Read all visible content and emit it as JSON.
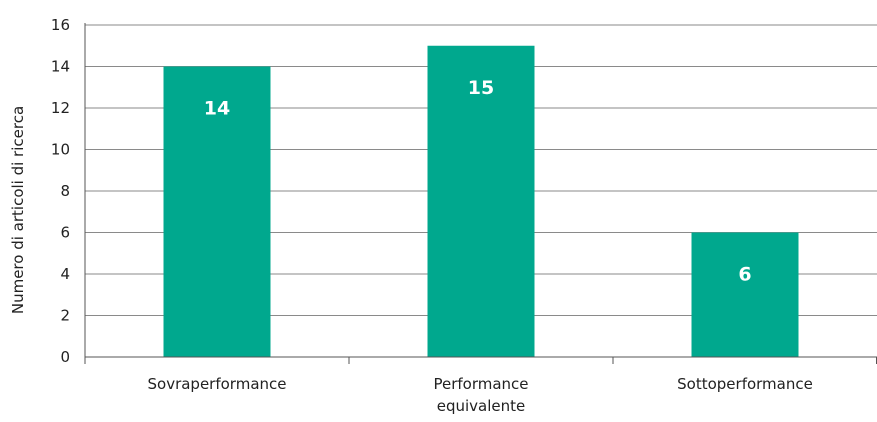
{
  "chart_data": {
    "type": "bar",
    "categories": [
      [
        "Sovraperformance"
      ],
      [
        "Performance",
        "equivalente"
      ],
      [
        "Sottoperformance"
      ]
    ],
    "values": [
      14,
      15,
      6
    ],
    "data_labels": [
      "14",
      "15",
      "6"
    ],
    "ylabel": "Numero di articoli di ricerca",
    "xlabel": "",
    "ylim": [
      0,
      16
    ],
    "yticks": [
      "0",
      "2",
      "4",
      "6",
      "8",
      "10",
      "12",
      "14",
      "16"
    ],
    "grid": true,
    "legend": "none",
    "colors": {
      "bar": "#00a88e",
      "grid": "#8a8a8a",
      "axis": "#555555",
      "data_label": "#ffffff"
    }
  }
}
